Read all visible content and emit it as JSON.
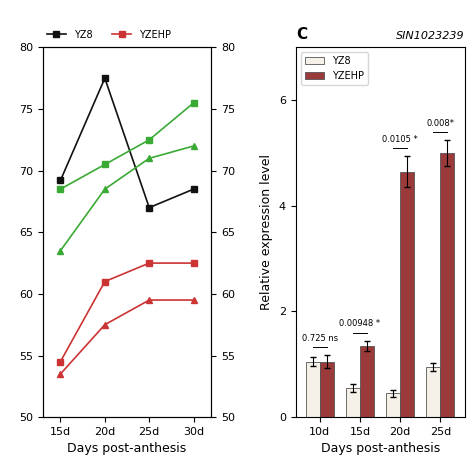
{
  "chart_data": [
    {
      "type": "line",
      "x": [
        15,
        20,
        25,
        30
      ],
      "xlim": [
        13,
        32
      ],
      "xticks": [
        {
          "value": 15,
          "label": "15d"
        },
        {
          "value": 20,
          "label": "20d"
        },
        {
          "value": 25,
          "label": "25d"
        },
        {
          "value": 30,
          "label": "30d"
        }
      ],
      "ylim": [
        50,
        80
      ],
      "yticks": [
        50,
        55,
        60,
        65,
        70,
        75,
        80
      ],
      "y2lim": [
        50,
        80
      ],
      "y2ticks": [
        50,
        55,
        60,
        65,
        70,
        75,
        80
      ],
      "x_label": "Days post-anthesis",
      "series": [
        {
          "name": "YZ8",
          "color": "#111111",
          "marker": "square",
          "values": [
            69.2,
            77.5,
            67.0,
            68.5
          ]
        },
        {
          "color": "#3aaa35",
          "marker": "square",
          "values": [
            68.5,
            70.5,
            72.5,
            75.5
          ]
        },
        {
          "color": "#3aaa35",
          "marker": "triangle",
          "values": [
            63.5,
            68.5,
            71.0,
            72.0
          ]
        },
        {
          "name": "YZEHP",
          "color": "#cc3333",
          "marker": "square",
          "values": [
            54.5,
            61.0,
            62.5,
            62.5
          ]
        },
        {
          "color": "#cc3333",
          "marker": "triangle",
          "values": [
            53.5,
            57.5,
            59.5,
            59.5
          ]
        }
      ]
    },
    {
      "type": "bar",
      "title": "C",
      "subtitle": "SIN1023239",
      "categories": [
        "10d",
        "15d",
        "20d",
        "25d"
      ],
      "x_label": "Days post-anthesis",
      "y_label": "Relative expression level",
      "ylim": [
        0,
        7
      ],
      "yticks": [
        0,
        2,
        4,
        6
      ],
      "legend": "upper left",
      "annotations": [
        "0.725 ns",
        "0.00948 *",
        "0.0105 *",
        "0.008*"
      ],
      "series": [
        {
          "name": "YZ8",
          "color": "#f5f0e8",
          "values": [
            1.05,
            0.55,
            0.45,
            0.95
          ],
          "errors": [
            0.08,
            0.07,
            0.06,
            0.08
          ]
        },
        {
          "name": "YZEHP",
          "color": "#9b3a3a",
          "values": [
            1.05,
            1.35,
            4.65,
            5.0
          ],
          "errors": [
            0.12,
            0.1,
            0.3,
            0.25
          ]
        }
      ]
    }
  ]
}
